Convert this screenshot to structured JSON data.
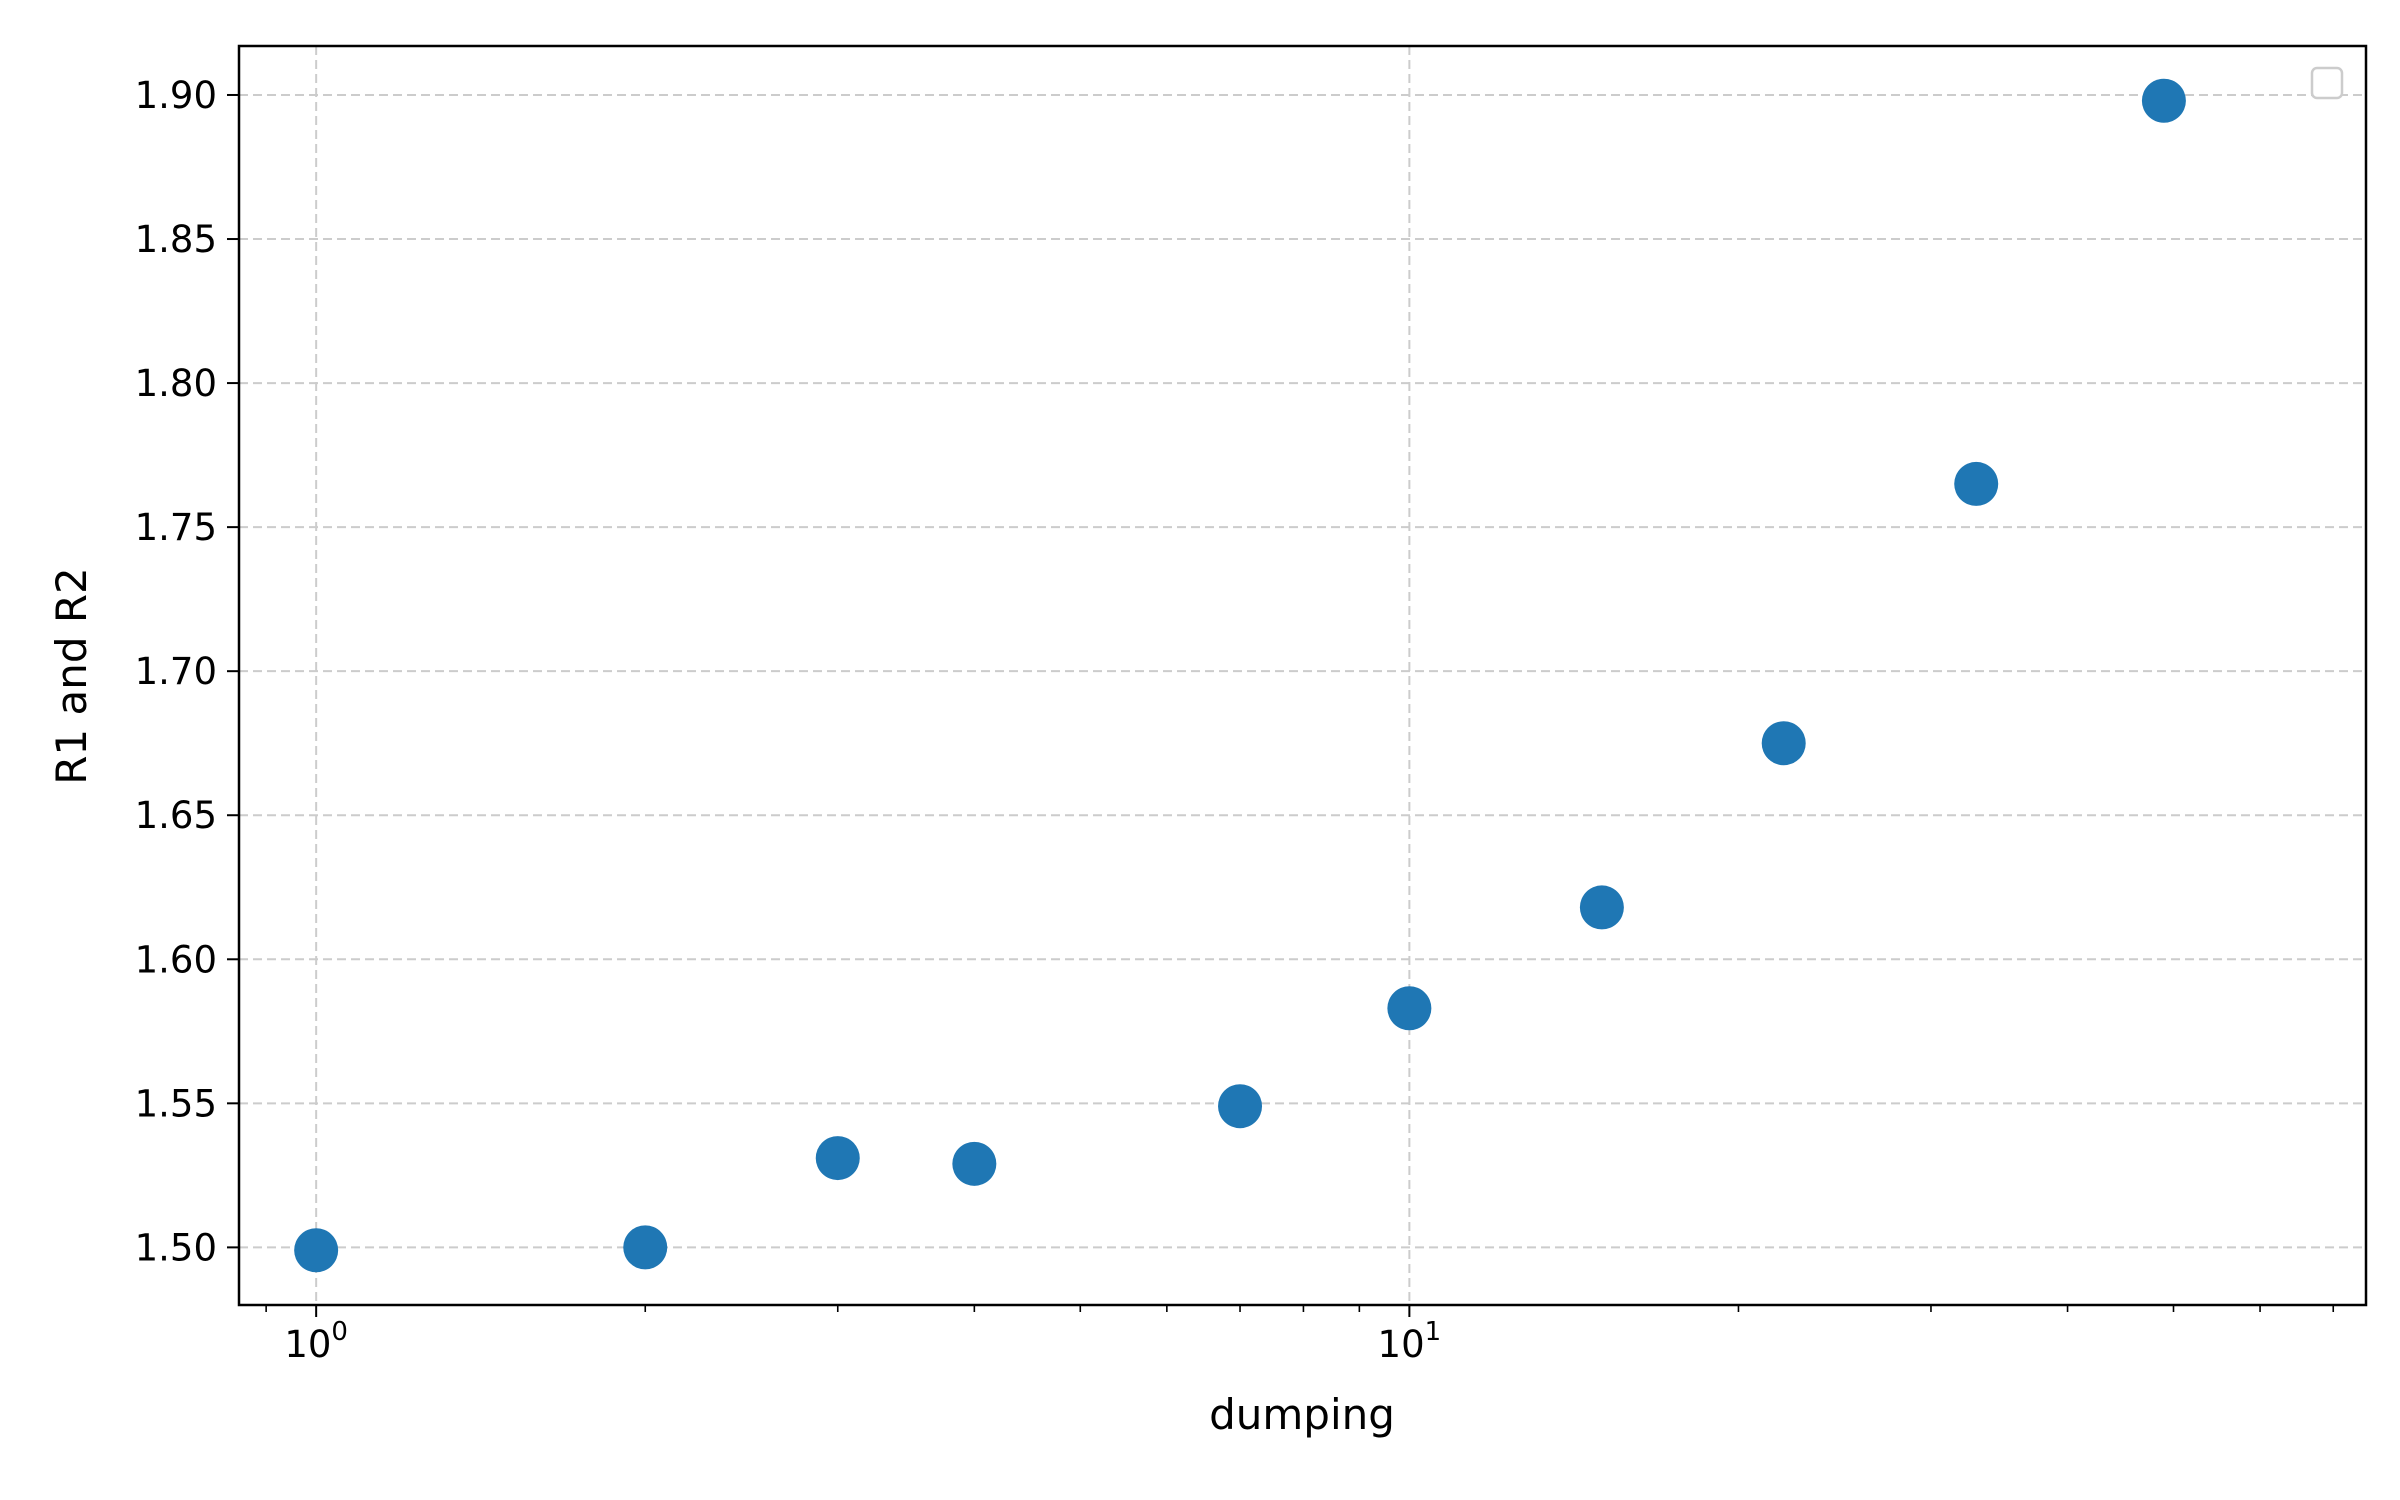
{
  "chart_data": {
    "type": "scatter",
    "title": "",
    "xlabel": "dumping",
    "ylabel": "R1  and R2",
    "xscale": "log",
    "xlim": [
      0.85,
      75
    ],
    "ylim": [
      1.48,
      1.917
    ],
    "x_ticks": [
      {
        "base": "10",
        "exp": "0"
      },
      {
        "base": "10",
        "exp": "1"
      }
    ],
    "y_ticks": [
      "1.50",
      "1.55",
      "1.60",
      "1.65",
      "1.70",
      "1.75",
      "1.80",
      "1.85",
      "1.90"
    ],
    "grid": true,
    "legend": "upper-right (empty)",
    "marker_color": "#1f77b4",
    "series": [
      {
        "x": [
          1,
          2,
          3,
          4,
          7,
          10,
          15,
          22,
          33,
          49
        ],
        "y": [
          1.499,
          1.5,
          1.531,
          1.529,
          1.549,
          1.583,
          1.618,
          1.675,
          1.765,
          1.898
        ]
      }
    ]
  }
}
